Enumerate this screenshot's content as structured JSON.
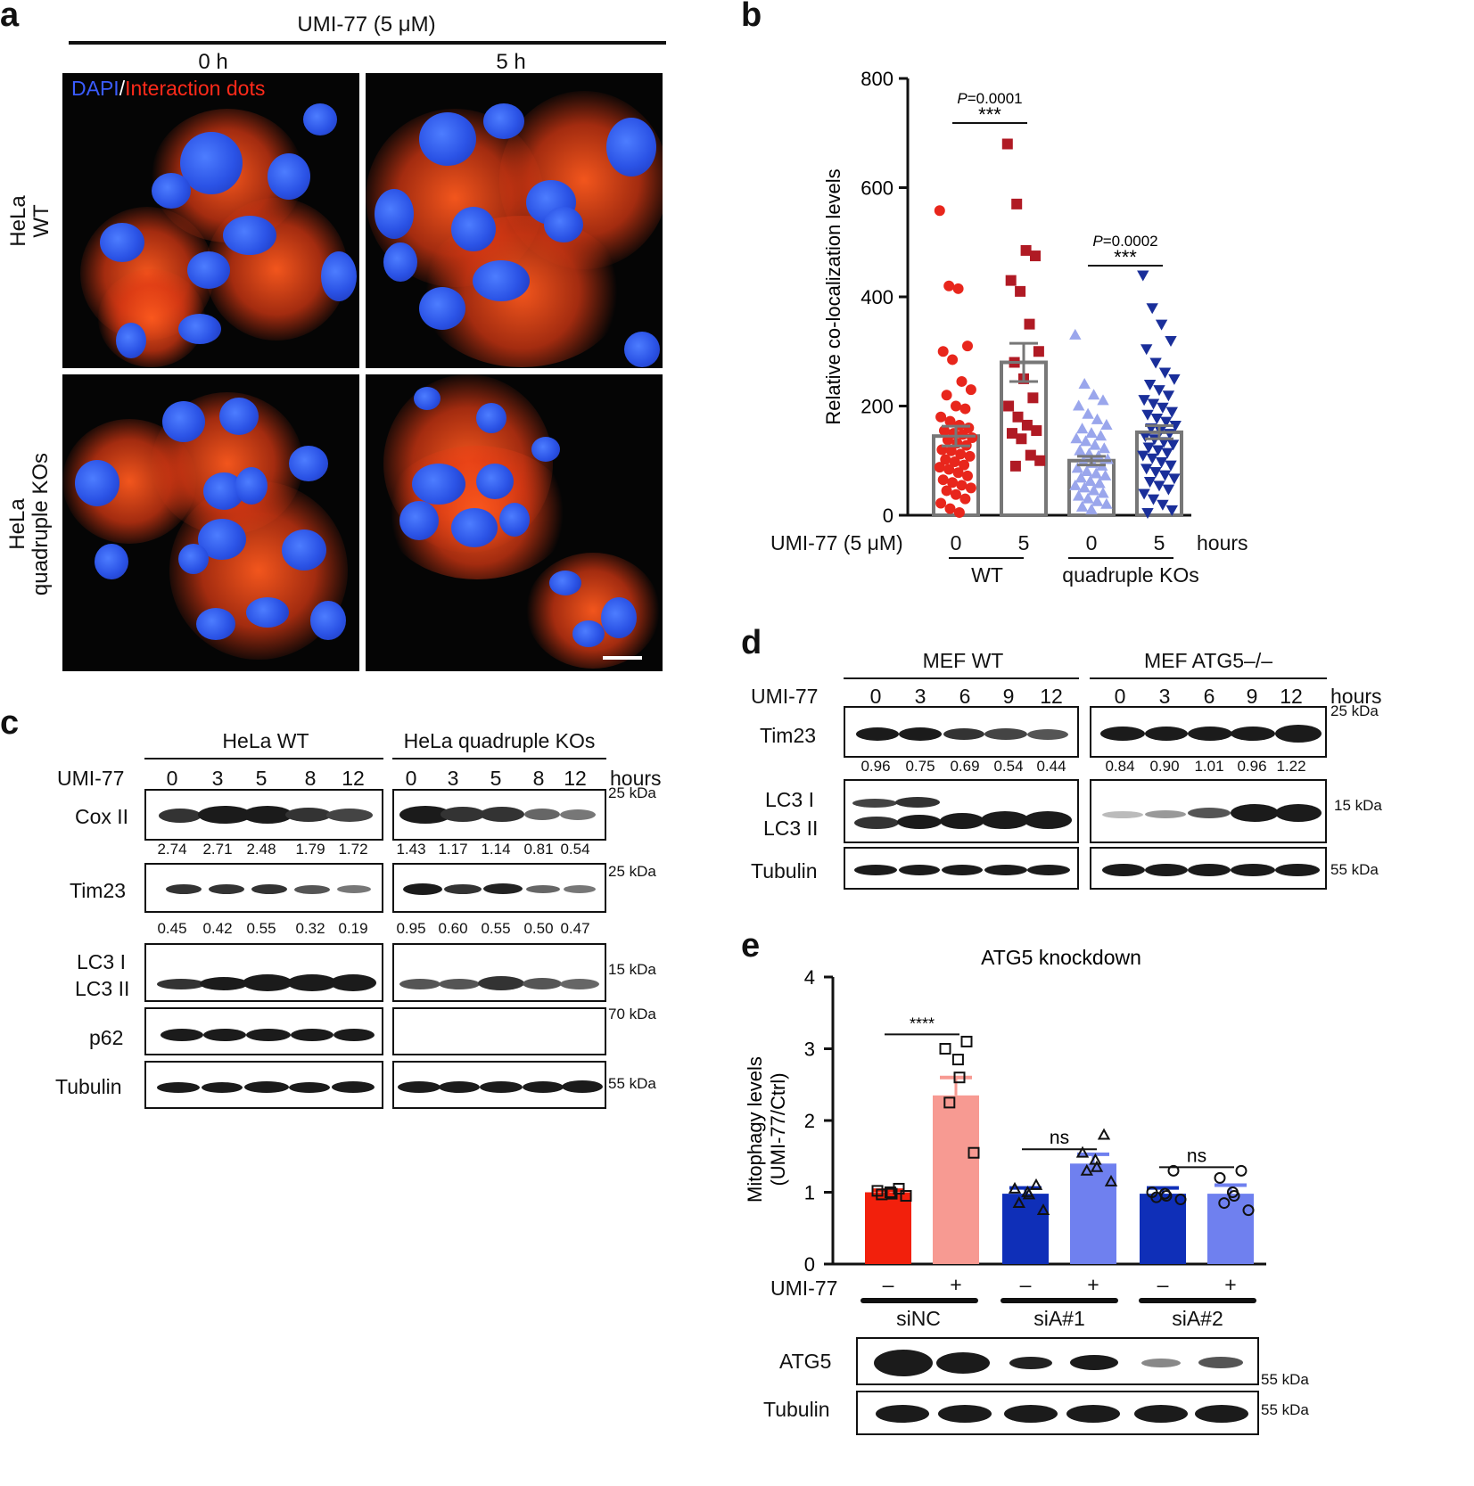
{
  "panel_a": {
    "label": "a",
    "treatment": "UMI-77 (5 μM)",
    "time_labels": [
      "0 h",
      "5 h"
    ],
    "legend_dapi": "DAPI",
    "legend_sep": "/",
    "legend_dots": "Interaction dots",
    "row_labels": [
      [
        "HeLa",
        "WT"
      ],
      [
        "HeLa",
        "quadruple KOs"
      ]
    ]
  },
  "panel_b": {
    "label": "b",
    "row_label": "UMI-77 (5 μM)",
    "group_labels": [
      "WT",
      "quadruple KOs"
    ],
    "unit": "hours",
    "chart_data": {
      "type": "bar",
      "ylabel": "Relative co-localization levels",
      "ylim": [
        0,
        800
      ],
      "yticks": [
        0,
        200,
        400,
        600,
        800
      ],
      "categories": [
        "0",
        "5",
        "0",
        "5"
      ],
      "values": [
        145,
        280,
        100,
        152
      ],
      "errors": [
        18,
        35,
        8,
        12
      ],
      "colors": [
        "#e8261c",
        "#b01a24",
        "#9aa6ec",
        "#1a2f9a"
      ],
      "markers": [
        "circle",
        "square",
        "triangle-up",
        "triangle-down"
      ],
      "points": [
        [
          558,
          420,
          415,
          310,
          300,
          285,
          245,
          230,
          220,
          200,
          195,
          180,
          172,
          165,
          160,
          155,
          150,
          148,
          142,
          138,
          132,
          128,
          120,
          118,
          112,
          108,
          102,
          98,
          92,
          88,
          84,
          78,
          72,
          65,
          60,
          55,
          50,
          45,
          38,
          30,
          22,
          12,
          5
        ],
        [
          680,
          570,
          485,
          475,
          430,
          410,
          350,
          300,
          280,
          250,
          215,
          200,
          180,
          165,
          155,
          150,
          140,
          110,
          100,
          90
        ],
        [
          330,
          240,
          220,
          210,
          200,
          185,
          175,
          165,
          158,
          150,
          145,
          140,
          135,
          128,
          122,
          118,
          112,
          108,
          102,
          98,
          95,
          90,
          86,
          80,
          76,
          72,
          68,
          62,
          58,
          54,
          50,
          45,
          40,
          35,
          30,
          25,
          20,
          15,
          10
        ],
        [
          440,
          380,
          350,
          320,
          305,
          280,
          262,
          250,
          240,
          230,
          220,
          212,
          205,
          198,
          190,
          185,
          178,
          172,
          165,
          160,
          155,
          150,
          145,
          140,
          135,
          130,
          125,
          120,
          115,
          110,
          105,
          98,
          92,
          86,
          80,
          74,
          68,
          62,
          55,
          48,
          40,
          30,
          20,
          10,
          5
        ]
      ],
      "annotations": [
        {
          "pvalue": "=0.0001",
          "p_italic": "P",
          "stars": "***",
          "between": [
            0,
            1
          ]
        },
        {
          "pvalue": "=0.0002",
          "p_italic": "P",
          "stars": "***",
          "between": [
            2,
            3
          ]
        }
      ]
    }
  },
  "panel_c": {
    "label": "c",
    "group_labels": [
      "HeLa WT",
      "HeLa quadruple KOs"
    ],
    "treatment": "UMI-77",
    "timepoints": [
      "0",
      "3",
      "5",
      "8",
      "12"
    ],
    "unit": "hours",
    "rows": [
      {
        "label": "Cox II",
        "marker": "25 kDa"
      },
      {
        "label": "Tim23",
        "marker": "25 kDa"
      },
      {
        "label": "LC3 I",
        "label2": "LC3 II",
        "marker": "15 kDa"
      },
      {
        "label": "p62",
        "marker": "70 kDa"
      },
      {
        "label": "Tubulin",
        "marker": "55 kDa"
      }
    ],
    "cox_values": [
      "2.74",
      "2.71",
      "2.48",
      "1.79",
      "1.72",
      "1.43",
      "1.17",
      "1.14",
      "0.81",
      "0.54"
    ],
    "tim_values": [
      "0.45",
      "0.42",
      "0.55",
      "0.32",
      "0.19",
      "0.95",
      "0.60",
      "0.55",
      "0.50",
      "0.47"
    ]
  },
  "panel_d": {
    "label": "d",
    "group_labels": [
      "MEF WT",
      "MEF ATG5–/–"
    ],
    "treatment": "UMI-77",
    "timepoints": [
      "0",
      "3",
      "6",
      "9",
      "12"
    ],
    "unit": "hours",
    "rows": [
      {
        "label": "Tim23",
        "marker": "25 kDa"
      },
      {
        "label": "LC3 I",
        "label2": "LC3 II",
        "marker": "15 kDa"
      },
      {
        "label": "Tubulin",
        "marker": "55 kDa"
      }
    ],
    "tim_values": [
      "0.96",
      "0.75",
      "0.69",
      "0.54",
      "0.44",
      "0.84",
      "0.90",
      "1.01",
      "0.96",
      "1.22"
    ]
  },
  "panel_e": {
    "label": "e",
    "treatment": "UMI-77",
    "signs": [
      "–",
      "+",
      "–",
      "+",
      "–",
      "+"
    ],
    "groups": [
      "siNC",
      "siA#1",
      "siA#2"
    ],
    "blot_rows": [
      {
        "label": "ATG5",
        "marker": "55 kDa"
      },
      {
        "label": "Tubulin",
        "marker": "55 kDa"
      }
    ],
    "chart_data": {
      "type": "bar",
      "title": "ATG5 knockdown",
      "ylabel": "Mitophagy levels",
      "ylabel2": "(UMI-77/Ctrl)",
      "ylim": [
        0,
        4
      ],
      "yticks": [
        0,
        1,
        2,
        3,
        4
      ],
      "values": [
        1.0,
        2.35,
        0.98,
        1.4,
        0.98,
        0.98
      ],
      "errors": [
        0.03,
        0.25,
        0.08,
        0.13,
        0.08,
        0.12
      ],
      "colors": [
        "#f2200c",
        "#f79a92",
        "#0f2fb8",
        "#6f80ef",
        "#0f2fb8",
        "#6f80ef"
      ],
      "markers": [
        "square",
        "square",
        "triangle-up",
        "triangle-up",
        "circle",
        "circle"
      ],
      "points": [
        [
          1.05,
          1.02,
          1.0,
          0.98,
          0.97,
          0.95
        ],
        [
          3.1,
          3.0,
          2.85,
          2.6,
          2.25,
          1.55
        ],
        [
          1.1,
          1.05,
          1.0,
          0.97,
          0.85,
          0.75
        ],
        [
          1.8,
          1.55,
          1.45,
          1.35,
          1.3,
          1.15
        ],
        [
          1.3,
          1.0,
          0.98,
          0.95,
          0.93,
          0.9
        ],
        [
          1.3,
          1.2,
          1.0,
          0.95,
          0.85,
          0.75
        ]
      ],
      "annotations": [
        {
          "text": "****",
          "between": [
            0,
            1
          ]
        },
        {
          "text": "ns",
          "between": [
            2,
            3
          ]
        },
        {
          "text": "ns",
          "between": [
            4,
            5
          ]
        }
      ]
    }
  }
}
